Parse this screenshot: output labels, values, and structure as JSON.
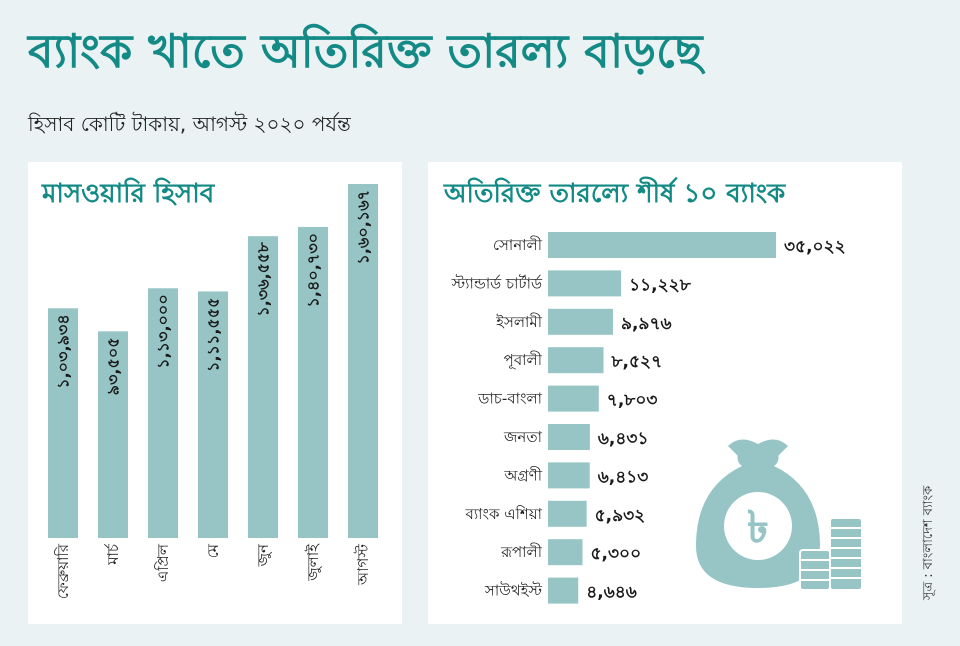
{
  "header": {
    "title": "ব্যাংক খাতে অতিরিক্ত তারল্য বাড়ছে",
    "subtitle": "হিসাব কোটি টাকায়, আগস্ট ২০২০ পর্যন্ত"
  },
  "source": "সূত্র : বাংলাদেশ ব্যাংক",
  "colors": {
    "accent": "#138a86",
    "bar": "#97c5c6",
    "icon": "#97c5c6"
  },
  "icons": [
    "money-bag-icon",
    "coin-stack-icon"
  ],
  "chart_data": [
    {
      "type": "bar",
      "orientation": "vertical",
      "title": "মাসওয়ারি হিসাব",
      "categories": [
        "ফেব্রুয়ারি",
        "মার্চ",
        "এপ্রিল",
        "মে",
        "জুন",
        "জুলাই",
        "আগস্ট"
      ],
      "values": [
        103934,
        93505,
        113000,
        111555,
        136558,
        140730,
        160167
      ],
      "labels": [
        "১,০৩,৯৩৪",
        "৯৩,৫০৫",
        "১,১৩,০০০",
        "১,১১,৫৫৫",
        "১,৩৬,৫৫৮",
        "১,৪০,৭৩০",
        "১,৬০,১৬৭"
      ],
      "grid": false
    },
    {
      "type": "bar",
      "orientation": "horizontal",
      "title": "অতিরিক্ত তারল্যে শীর্ষ ১০ ব্যাংক",
      "categories": [
        "সোনালী",
        "স্ট্যান্ডার্ড চার্টার্ড",
        "ইসলামী",
        "পূবালী",
        "ডাচ-বাংলা",
        "জনতা",
        "অগ্রণী",
        "ব্যাংক এশিয়া",
        "রূপালী",
        "সাউথইস্ট"
      ],
      "values": [
        35022,
        11228,
        9976,
        8527,
        7803,
        6431,
        6413,
        5932,
        5300,
        4646
      ],
      "labels": [
        "৩৫,০২২",
        "১১,২২৮",
        "৯,৯৭৬",
        "৮,৫২৭",
        "৭,৮০৩",
        "৬,৪৩১",
        "৬,৪১৩",
        "৫,৯৩২",
        "৫,৩০০",
        "৪,৬৪৬"
      ],
      "grid": false
    }
  ]
}
